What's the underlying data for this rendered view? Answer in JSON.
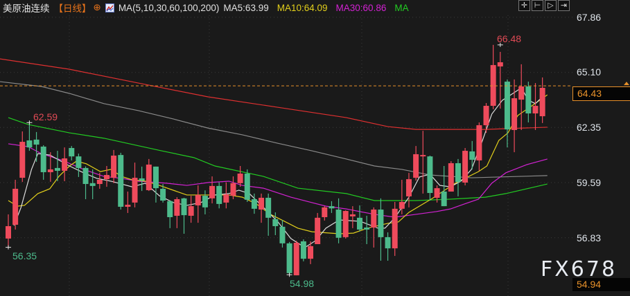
{
  "header": {
    "instrument": "美原油连续",
    "period": "【日线】",
    "indicator": "MA(5,10,30,60,100,200)",
    "ma5": "MA5:63.99",
    "ma10": "MA10:64.09",
    "ma30": "MA30:60.86",
    "ma_truncated": "MA"
  },
  "toolbar": {
    "icons": [
      "crosshair-icon",
      "zoom-start-icon",
      "play-icon",
      "move-right-icon"
    ],
    "glyphs": [
      "✛",
      "⊢",
      "▷",
      "⇥"
    ]
  },
  "price_axis": [
    "67.86",
    "65.10",
    "62.35",
    "59.59",
    "56.83"
  ],
  "current_price": "64.43",
  "bottom_price": "54.94",
  "watermark": "FX678",
  "extremes": {
    "high": "66.48",
    "left_high": "62.59",
    "left_low": "56.35",
    "low": "54.98"
  },
  "colors": {
    "up": "#ef4b5c",
    "down": "#4dbb8c",
    "ma5": "#dcdcdc",
    "ma10": "#e2cf1b",
    "ma30": "#d322d3",
    "ma60": "#22cc22",
    "ma100": "#8a8a8a",
    "ma200": "#e03030",
    "accent": "#e8912a"
  },
  "chart_data": {
    "type": "candlestick",
    "ylim": [
      54.5,
      68.5
    ],
    "candles_ohlc": [
      [
        56.79,
        58.0,
        56.35,
        57.41
      ],
      [
        57.48,
        59.73,
        57.24,
        59.28
      ],
      [
        59.83,
        62.15,
        59.62,
        61.63
      ],
      [
        61.7,
        62.59,
        61.18,
        61.35
      ],
      [
        61.74,
        62.12,
        60.63,
        61.49
      ],
      [
        61.39,
        61.46,
        59.73,
        60.11
      ],
      [
        60.11,
        61.11,
        59.63,
        60.25
      ],
      [
        60.32,
        61.18,
        59.66,
        60.18
      ],
      [
        60.18,
        61.35,
        59.66,
        60.8
      ],
      [
        61.32,
        61.42,
        60.7,
        60.9
      ],
      [
        60.9,
        61.04,
        59.87,
        60.32
      ],
      [
        60.32,
        60.4,
        58.76,
        59.52
      ],
      [
        59.56,
        60.25,
        58.76,
        59.42
      ],
      [
        59.52,
        60.08,
        59.28,
        59.73
      ],
      [
        59.76,
        60.42,
        59.38,
        59.97
      ],
      [
        59.83,
        61.22,
        59.56,
        60.94
      ],
      [
        60.97,
        61.08,
        58.24,
        58.38
      ],
      [
        58.38,
        59.14,
        58.07,
        58.48
      ],
      [
        58.59,
        60.59,
        58.35,
        59.83
      ],
      [
        59.8,
        60.39,
        59.17,
        59.69
      ],
      [
        59.21,
        60.77,
        59.17,
        60.49
      ],
      [
        60.39,
        60.39,
        58.59,
        59.31
      ],
      [
        59.28,
        59.52,
        58.59,
        58.69
      ],
      [
        58.66,
        58.7,
        57.31,
        57.86
      ],
      [
        57.93,
        58.86,
        57.31,
        58.76
      ],
      [
        58.8,
        58.83,
        57.03,
        57.96
      ],
      [
        57.93,
        58.93,
        57.58,
        58.41
      ],
      [
        58.45,
        59.45,
        57.58,
        58.97
      ],
      [
        58.93,
        59.2,
        58.0,
        58.35
      ],
      [
        58.8,
        59.9,
        58.55,
        59.42
      ],
      [
        59.42,
        59.6,
        58.3,
        58.52
      ],
      [
        58.59,
        59.6,
        58.3,
        59.0
      ],
      [
        58.93,
        59.9,
        58.76,
        59.56
      ],
      [
        59.56,
        60.42,
        59.38,
        60.04
      ],
      [
        60.04,
        60.25,
        58.62,
        58.73
      ],
      [
        58.76,
        59.04,
        58.03,
        58.28
      ],
      [
        58.24,
        59.04,
        57.58,
        58.83
      ],
      [
        58.83,
        59.04,
        56.93,
        57.83
      ],
      [
        57.76,
        58.1,
        56.96,
        57.41
      ],
      [
        57.38,
        57.72,
        56.34,
        56.55
      ],
      [
        56.55,
        56.62,
        54.98,
        55.06
      ],
      [
        54.95,
        56.68,
        54.95,
        56.58
      ],
      [
        56.65,
        56.75,
        55.65,
        55.78
      ],
      [
        55.78,
        56.65,
        55.51,
        56.41
      ],
      [
        56.51,
        58.07,
        56.51,
        57.83
      ],
      [
        57.86,
        58.41,
        57.69,
        58.35
      ],
      [
        58.41,
        58.66,
        58.07,
        58.3
      ],
      [
        58.24,
        58.8,
        56.55,
        56.83
      ],
      [
        56.86,
        58.2,
        56.79,
        58.17
      ],
      [
        57.9,
        58.41,
        57.31,
        58.0
      ],
      [
        57.83,
        58.45,
        57.14,
        57.24
      ],
      [
        57.34,
        57.93,
        56.51,
        57.24
      ],
      [
        57.34,
        58.35,
        56.34,
        58.24
      ],
      [
        58.24,
        58.8,
        55.68,
        56.86
      ],
      [
        56.86,
        57.1,
        55.68,
        56.3
      ],
      [
        56.3,
        58.62,
        55.92,
        58.28
      ],
      [
        58.28,
        59.73,
        58.0,
        58.62
      ],
      [
        58.9,
        60.08,
        58.35,
        59.76
      ],
      [
        59.83,
        61.42,
        59.69,
        61.01
      ],
      [
        60.9,
        62.18,
        59.04,
        60.97
      ],
      [
        60.9,
        60.94,
        58.69,
        59.07
      ],
      [
        58.83,
        59.45,
        58.59,
        59.31
      ],
      [
        59.14,
        60.42,
        58.41,
        58.41
      ],
      [
        59.14,
        60.66,
        59.14,
        60.56
      ],
      [
        60.56,
        60.77,
        58.9,
        59.62
      ],
      [
        59.59,
        61.32,
        59.45,
        61.18
      ],
      [
        61.15,
        61.67,
        60.25,
        60.73
      ],
      [
        60.7,
        62.6,
        60.18,
        62.46
      ],
      [
        62.46,
        63.57,
        62.08,
        63.43
      ],
      [
        63.43,
        66.48,
        63.26,
        65.47
      ],
      [
        65.4,
        66.13,
        63.29,
        65.61
      ],
      [
        64.64,
        64.75,
        61.35,
        62.25
      ],
      [
        62.22,
        64.75,
        61.11,
        63.81
      ],
      [
        63.74,
        65.51,
        62.22,
        64.4
      ],
      [
        64.4,
        64.64,
        62.6,
        63.05
      ],
      [
        63.05,
        64.57,
        62.22,
        63.43
      ],
      [
        62.91,
        64.85,
        62.57,
        64.33
      ]
    ],
    "moving_averages": [
      {
        "name": "MA5",
        "color_key": "ma5",
        "points": [
          [
            0.8,
            57.44
          ],
          [
            1.8,
            58.34
          ],
          [
            3.3,
            60.25
          ],
          [
            4.2,
            61.04
          ],
          [
            5.9,
            60.97
          ],
          [
            8.7,
            60.42
          ],
          [
            10.7,
            60.08
          ],
          [
            12.6,
            59.8
          ],
          [
            14.6,
            59.66
          ],
          [
            17.6,
            59.38
          ],
          [
            19.5,
            59.56
          ],
          [
            21.5,
            58.93
          ],
          [
            23.5,
            58.59
          ],
          [
            25.4,
            58.45
          ],
          [
            27.4,
            58.59
          ],
          [
            29.4,
            58.97
          ],
          [
            31.4,
            59.04
          ],
          [
            32.8,
            59.21
          ],
          [
            34.3,
            59.04
          ],
          [
            36.3,
            58.35
          ],
          [
            38.3,
            57.65
          ],
          [
            40.2,
            56.79
          ],
          [
            42.2,
            56.34
          ],
          [
            43.7,
            56.68
          ],
          [
            45.2,
            57.31
          ],
          [
            47.1,
            57.72
          ],
          [
            50.1,
            57.65
          ],
          [
            52.6,
            57.31
          ],
          [
            53.6,
            57.31
          ],
          [
            55.0,
            57.83
          ],
          [
            57.0,
            58.86
          ],
          [
            58.5,
            59.87
          ],
          [
            60.0,
            60.01
          ],
          [
            61.4,
            59.45
          ],
          [
            62.9,
            59.38
          ],
          [
            64.4,
            59.66
          ],
          [
            65.9,
            60.25
          ],
          [
            67.4,
            61.63
          ],
          [
            68.8,
            63.02
          ],
          [
            70.3,
            63.71
          ],
          [
            71.8,
            64.05
          ],
          [
            73.0,
            64.33
          ],
          [
            74.0,
            63.71
          ],
          [
            75.0,
            63.54
          ],
          [
            76.2,
            63.95
          ]
        ]
      },
      {
        "name": "MA10",
        "color_key": "ma10",
        "points": [
          [
            0,
            58.69
          ],
          [
            1.3,
            58.41
          ],
          [
            2.3,
            58.45
          ],
          [
            4.2,
            59.04
          ],
          [
            5.9,
            59.28
          ],
          [
            7.2,
            59.9
          ],
          [
            8.7,
            60.42
          ],
          [
            9.7,
            60.66
          ],
          [
            11.1,
            60.53
          ],
          [
            13.1,
            60.14
          ],
          [
            14.6,
            60.25
          ],
          [
            16.1,
            59.9
          ],
          [
            17.6,
            59.73
          ],
          [
            19.5,
            59.66
          ],
          [
            21.5,
            59.45
          ],
          [
            25.4,
            58.97
          ],
          [
            29.4,
            58.97
          ],
          [
            31.4,
            58.97
          ],
          [
            33.3,
            58.86
          ],
          [
            35.3,
            58.52
          ],
          [
            37.3,
            58.0
          ],
          [
            39.3,
            57.65
          ],
          [
            41.2,
            57.31
          ],
          [
            43.2,
            57.13
          ],
          [
            47.1,
            57.03
          ],
          [
            49.1,
            57.06
          ],
          [
            51.1,
            57.31
          ],
          [
            54.0,
            57.55
          ],
          [
            55.5,
            57.62
          ],
          [
            57.0,
            58.1
          ],
          [
            60.3,
            58.79
          ],
          [
            63.6,
            59.56
          ],
          [
            66.9,
            60.14
          ],
          [
            68.1,
            60.42
          ],
          [
            69.8,
            61.7
          ],
          [
            71.1,
            62.08
          ],
          [
            72.5,
            62.95
          ],
          [
            74.5,
            63.43
          ],
          [
            76.7,
            63.98
          ]
        ]
      },
      {
        "name": "MA30",
        "color_key": "ma30",
        "points": [
          [
            0,
            61.53
          ],
          [
            2.8,
            61.39
          ],
          [
            4.7,
            61.04
          ],
          [
            7.7,
            60.7
          ],
          [
            10.7,
            60.25
          ],
          [
            13.6,
            59.9
          ],
          [
            16.1,
            59.8
          ],
          [
            18.5,
            59.66
          ],
          [
            22.5,
            59.56
          ],
          [
            25.4,
            59.45
          ],
          [
            28.4,
            59.59
          ],
          [
            31.4,
            59.66
          ],
          [
            33.3,
            59.45
          ],
          [
            36.3,
            59.31
          ],
          [
            40.2,
            58.86
          ],
          [
            43.2,
            58.59
          ],
          [
            45.2,
            58.41
          ],
          [
            48.1,
            58.27
          ],
          [
            52.1,
            58.0
          ],
          [
            55.0,
            57.86
          ],
          [
            58.0,
            58.0
          ],
          [
            60.9,
            58.14
          ],
          [
            62.9,
            58.27
          ],
          [
            64.9,
            58.52
          ],
          [
            66.9,
            58.76
          ],
          [
            68.8,
            59.56
          ],
          [
            70.8,
            60.08
          ],
          [
            73.8,
            60.49
          ],
          [
            76.7,
            60.77
          ]
        ]
      },
      {
        "name": "MA60",
        "color_key": "ma60",
        "points": [
          [
            0,
            62.84
          ],
          [
            2.8,
            62.5
          ],
          [
            8.7,
            62.08
          ],
          [
            13.6,
            61.81
          ],
          [
            21.8,
            61.18
          ],
          [
            26.4,
            60.84
          ],
          [
            29.4,
            60.42
          ],
          [
            36.3,
            59.9
          ],
          [
            41.2,
            59.31
          ],
          [
            48.1,
            59.04
          ],
          [
            52.1,
            58.69
          ],
          [
            58.0,
            58.69
          ],
          [
            62.9,
            58.76
          ],
          [
            67.9,
            58.86
          ],
          [
            70.8,
            59.04
          ],
          [
            76.7,
            59.52
          ]
        ]
      },
      {
        "name": "MA100",
        "color_key": "ma100",
        "points": [
          [
            -1.2,
            64.64
          ],
          [
            4.7,
            64.4
          ],
          [
            8.7,
            64.05
          ],
          [
            13.6,
            63.54
          ],
          [
            18.5,
            63.19
          ],
          [
            23.5,
            62.77
          ],
          [
            28.4,
            62.32
          ],
          [
            33.3,
            61.98
          ],
          [
            38.3,
            61.56
          ],
          [
            43.2,
            61.18
          ],
          [
            48.1,
            60.77
          ],
          [
            52.1,
            60.42
          ],
          [
            56.0,
            60.25
          ],
          [
            60.0,
            59.97
          ],
          [
            65.9,
            59.83
          ],
          [
            76.7,
            59.94
          ]
        ]
      },
      {
        "name": "MA200",
        "color_key": "ma200",
        "points": [
          [
            -1.2,
            65.78
          ],
          [
            8.7,
            65.26
          ],
          [
            18.5,
            64.57
          ],
          [
            28.4,
            63.88
          ],
          [
            38.3,
            63.36
          ],
          [
            48.1,
            62.84
          ],
          [
            54.0,
            62.39
          ],
          [
            58.0,
            62.25
          ],
          [
            67.9,
            62.25
          ],
          [
            76.7,
            62.36
          ]
        ]
      }
    ],
    "y_ticks": [
      67.86,
      65.1,
      62.35,
      59.59,
      56.83
    ],
    "current_price": 64.43,
    "grid": true
  }
}
